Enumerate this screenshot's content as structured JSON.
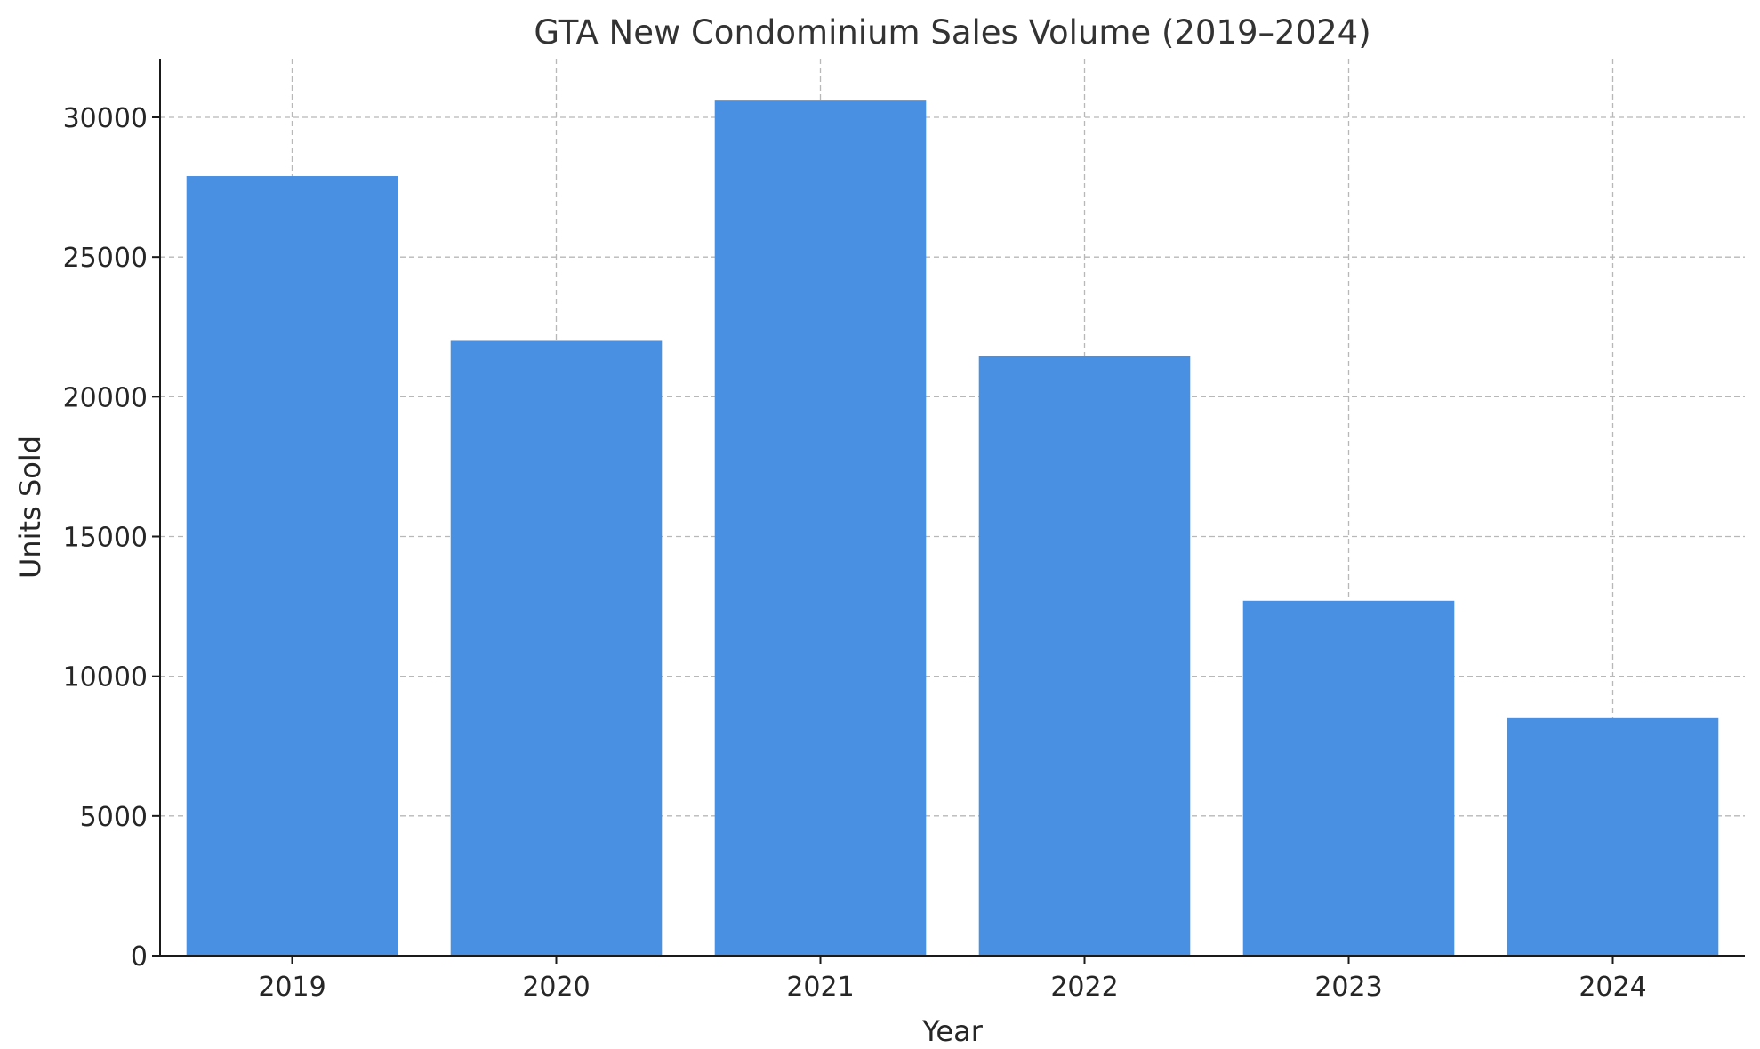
{
  "chart_data": {
    "type": "bar",
    "title": "GTA New Condominium Sales Volume (2019–2024)",
    "xlabel": "Year",
    "ylabel": "Units Sold",
    "categories": [
      "2019",
      "2020",
      "2021",
      "2022",
      "2023",
      "2024"
    ],
    "values": [
      27900,
      22000,
      30600,
      21450,
      12700,
      8500
    ],
    "ylim": [
      0,
      32100
    ],
    "yticks": [
      0,
      5000,
      10000,
      15000,
      20000,
      25000,
      30000
    ],
    "grid": true,
    "bar_color": "#4a90e2",
    "legend": "none"
  }
}
